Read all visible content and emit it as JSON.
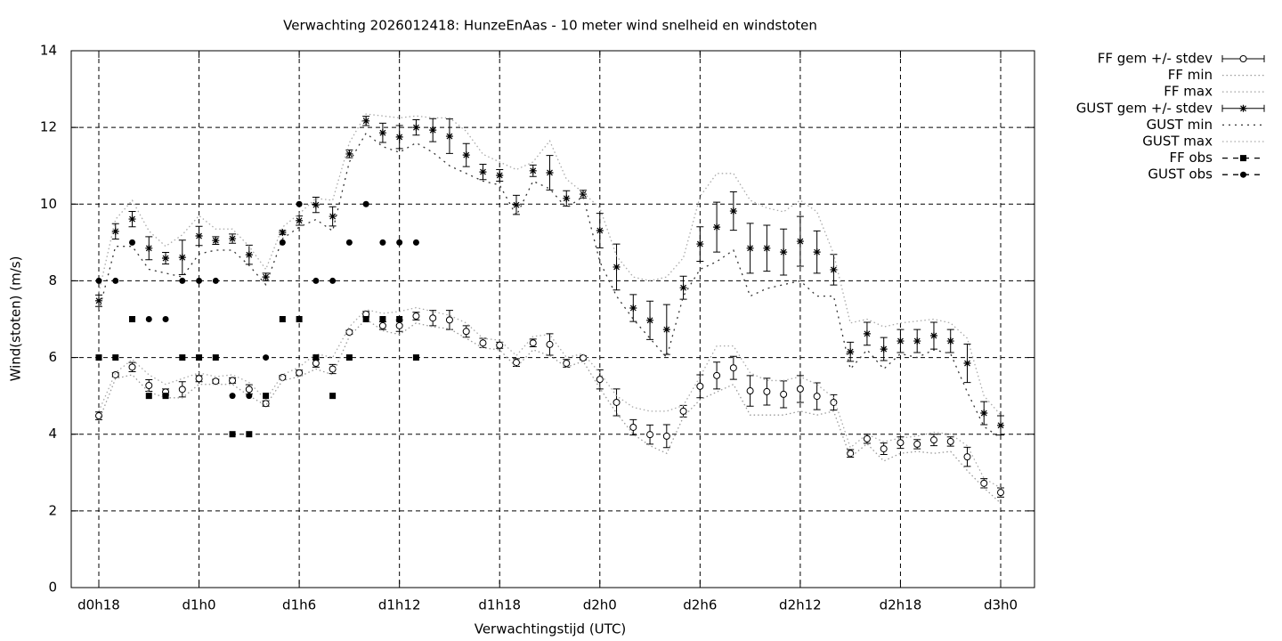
{
  "chart_data": {
    "type": "line",
    "title": "Verwachting 2026012418: HunzeEnAas - 10 meter wind snelheid en windstoten",
    "xlabel": "Verwachtingstijd (UTC)",
    "ylabel": "Wind(stoten) (m/s)",
    "categories": [
      "d0h18",
      null,
      null,
      null,
      null,
      null,
      "d1h0",
      null,
      null,
      null,
      null,
      null,
      "d1h6",
      null,
      null,
      null,
      null,
      null,
      "d1h12",
      null,
      null,
      null,
      null,
      null,
      "d1h18",
      null,
      null,
      null,
      null,
      null,
      "d2h0",
      null,
      null,
      null,
      null,
      null,
      "d2h6",
      null,
      null,
      null,
      null,
      null,
      "d2h12",
      null,
      null,
      null,
      null,
      null,
      "d2h18",
      null,
      null,
      null,
      null,
      null,
      "d3h0"
    ],
    "ylim": [
      0,
      14
    ],
    "yticks": [
      0,
      2,
      4,
      6,
      8,
      10,
      12,
      14
    ],
    "grid": true,
    "legend": "outside",
    "series": [
      {
        "name": "FF gem +/- stdev",
        "color": "#000000",
        "style": "errorbars",
        "marker": "circle-open",
        "values": [
          4.48,
          5.55,
          5.75,
          5.27,
          5.1,
          5.17,
          5.45,
          5.38,
          5.4,
          5.17,
          4.8,
          5.48,
          5.6,
          5.85,
          5.7,
          6.66,
          7.13,
          6.83,
          6.83,
          7.08,
          7.03,
          6.98,
          6.68,
          6.38,
          6.32,
          5.87,
          6.38,
          6.34,
          5.85,
          5.99,
          5.43,
          4.83,
          4.18,
          3.99,
          3.95,
          4.6,
          5.25,
          5.53,
          5.73,
          5.13,
          5.11,
          5.04,
          5.18,
          4.99,
          4.83,
          3.5,
          3.88,
          3.62,
          3.78,
          3.74,
          3.85,
          3.81,
          3.41,
          2.72,
          2.48
        ],
        "errors": [
          0.1,
          0.05,
          0.12,
          0.15,
          0.08,
          0.2,
          0.08,
          0.05,
          0.07,
          0.12,
          0.07,
          0.05,
          0.07,
          0.1,
          0.12,
          0.05,
          0.07,
          0.1,
          0.15,
          0.1,
          0.2,
          0.25,
          0.15,
          0.12,
          0.08,
          0.1,
          0.1,
          0.28,
          0.1,
          0.05,
          0.25,
          0.35,
          0.2,
          0.25,
          0.3,
          0.15,
          0.3,
          0.35,
          0.3,
          0.4,
          0.35,
          0.35,
          0.35,
          0.35,
          0.2,
          0.1,
          0.12,
          0.15,
          0.15,
          0.12,
          0.15,
          0.12,
          0.25,
          0.12,
          0.12
        ]
      },
      {
        "name": "FF min",
        "color": "#999999",
        "style": "dotted",
        "values": [
          4.35,
          5.45,
          5.55,
          5.1,
          4.95,
          4.95,
          5.3,
          5.3,
          5.3,
          5.0,
          4.75,
          5.4,
          5.5,
          5.7,
          5.55,
          6.55,
          7.0,
          6.7,
          6.6,
          6.9,
          6.8,
          6.75,
          6.5,
          6.25,
          6.2,
          5.75,
          6.2,
          6.05,
          5.75,
          5.9,
          5.2,
          4.55,
          4.0,
          3.7,
          3.5,
          4.45,
          4.9,
          5.1,
          5.3,
          4.5,
          4.5,
          4.5,
          4.6,
          4.5,
          4.6,
          3.4,
          3.75,
          3.3,
          3.5,
          3.55,
          3.5,
          3.55,
          3.05,
          2.6,
          2.2
        ]
      },
      {
        "name": "FF max",
        "color": "#aaaaaa",
        "style": "dotted",
        "values": [
          4.6,
          5.6,
          5.95,
          5.55,
          5.3,
          5.45,
          5.6,
          5.5,
          5.55,
          5.35,
          4.9,
          5.55,
          5.75,
          6.1,
          6.0,
          6.8,
          7.25,
          7.15,
          7.2,
          7.3,
          7.2,
          7.1,
          6.9,
          6.5,
          6.45,
          6.05,
          6.55,
          6.6,
          6.0,
          6.1,
          5.6,
          5.0,
          4.7,
          4.6,
          4.6,
          4.75,
          5.5,
          6.3,
          6.3,
          5.6,
          5.4,
          5.4,
          5.5,
          5.3,
          4.95,
          3.65,
          4.0,
          3.8,
          3.9,
          3.95,
          4.05,
          4.0,
          3.7,
          2.85,
          2.6
        ]
      },
      {
        "name": "GUST gem +/- stdev",
        "color": "#000000",
        "style": "errorbars",
        "marker": "star",
        "values": [
          7.48,
          9.29,
          9.61,
          8.85,
          8.59,
          8.61,
          9.17,
          9.05,
          9.1,
          8.68,
          8.1,
          9.26,
          9.57,
          9.98,
          9.68,
          11.31,
          12.17,
          11.86,
          11.75,
          12.0,
          11.93,
          11.77,
          11.28,
          10.84,
          10.75,
          9.98,
          10.87,
          10.82,
          10.15,
          10.26,
          9.31,
          8.36,
          7.29,
          6.97,
          6.73,
          7.82,
          8.96,
          9.4,
          9.82,
          8.85,
          8.85,
          8.75,
          9.03,
          8.75,
          8.29,
          6.15,
          6.62,
          6.22,
          6.43,
          6.43,
          6.57,
          6.43,
          5.85,
          4.55,
          4.23
        ],
        "errors": [
          0.15,
          0.2,
          0.2,
          0.3,
          0.15,
          0.45,
          0.25,
          0.1,
          0.12,
          0.25,
          0.1,
          0.05,
          0.12,
          0.2,
          0.25,
          0.1,
          0.12,
          0.25,
          0.3,
          0.2,
          0.3,
          0.45,
          0.3,
          0.2,
          0.15,
          0.25,
          0.15,
          0.45,
          0.2,
          0.1,
          0.45,
          0.6,
          0.35,
          0.5,
          0.65,
          0.3,
          0.45,
          0.65,
          0.5,
          0.65,
          0.6,
          0.6,
          0.65,
          0.55,
          0.4,
          0.25,
          0.3,
          0.3,
          0.3,
          0.3,
          0.35,
          0.3,
          0.5,
          0.3,
          0.25
        ]
      },
      {
        "name": "GUST min",
        "color": "#333333",
        "style": "dashdot",
        "values": [
          7.2,
          8.9,
          8.9,
          8.3,
          8.2,
          8.1,
          8.7,
          8.8,
          8.8,
          8.4,
          7.9,
          9.1,
          9.4,
          9.6,
          9.3,
          11.1,
          11.85,
          11.5,
          11.35,
          11.6,
          11.35,
          11.0,
          10.8,
          10.6,
          10.5,
          9.7,
          10.6,
          10.4,
          9.9,
          10.2,
          8.5,
          7.6,
          7.0,
          6.5,
          6.0,
          7.6,
          8.3,
          8.5,
          8.8,
          7.6,
          7.8,
          7.9,
          8.0,
          7.6,
          7.6,
          5.7,
          6.2,
          5.7,
          6.1,
          6.0,
          6.2,
          6.1,
          5.1,
          4.2,
          3.9
        ]
      },
      {
        "name": "GUST max",
        "color": "#aaaaaa",
        "style": "dotted",
        "values": [
          7.7,
          9.6,
          10.1,
          9.3,
          8.9,
          9.2,
          9.7,
          9.35,
          9.35,
          8.9,
          8.3,
          9.4,
          9.75,
          10.15,
          10.1,
          11.6,
          12.35,
          12.3,
          12.25,
          12.3,
          12.25,
          12.25,
          11.9,
          11.3,
          11.1,
          10.9,
          11.1,
          11.65,
          10.65,
          10.3,
          9.9,
          8.65,
          8.1,
          8.0,
          8.1,
          8.6,
          10.2,
          10.8,
          10.8,
          10.1,
          9.9,
          9.8,
          10.1,
          9.8,
          8.7,
          6.9,
          7.0,
          6.8,
          6.9,
          6.95,
          7.0,
          6.9,
          6.5,
          5.0,
          4.5
        ]
      },
      {
        "name": "FF obs",
        "color": "#000000",
        "style": "points",
        "marker": "square",
        "values": [
          6,
          6,
          7,
          5,
          5,
          6,
          6,
          6,
          4,
          4,
          5,
          7,
          7,
          6,
          5,
          6,
          7,
          7,
          7,
          6,
          null,
          null,
          null,
          null,
          null,
          null,
          null,
          null,
          null,
          null,
          null,
          null,
          null,
          null,
          null,
          null,
          null,
          null,
          null,
          null,
          null,
          null,
          null,
          null,
          null,
          null,
          null,
          null,
          null,
          null,
          null,
          null,
          null,
          null,
          null
        ]
      },
      {
        "name": "GUST obs",
        "color": "#000000",
        "style": "points",
        "marker": "circle",
        "values": [
          8,
          8,
          9,
          7,
          7,
          8,
          8,
          8,
          5,
          5,
          6,
          9,
          10,
          8,
          8,
          9,
          10,
          9,
          9,
          9,
          null,
          null,
          null,
          null,
          null,
          null,
          null,
          null,
          null,
          null,
          null,
          null,
          null,
          null,
          null,
          null,
          null,
          null,
          null,
          null,
          null,
          null,
          null,
          null,
          null,
          null,
          null,
          null,
          null,
          null,
          null,
          null,
          null,
          null,
          null
        ]
      }
    ]
  }
}
